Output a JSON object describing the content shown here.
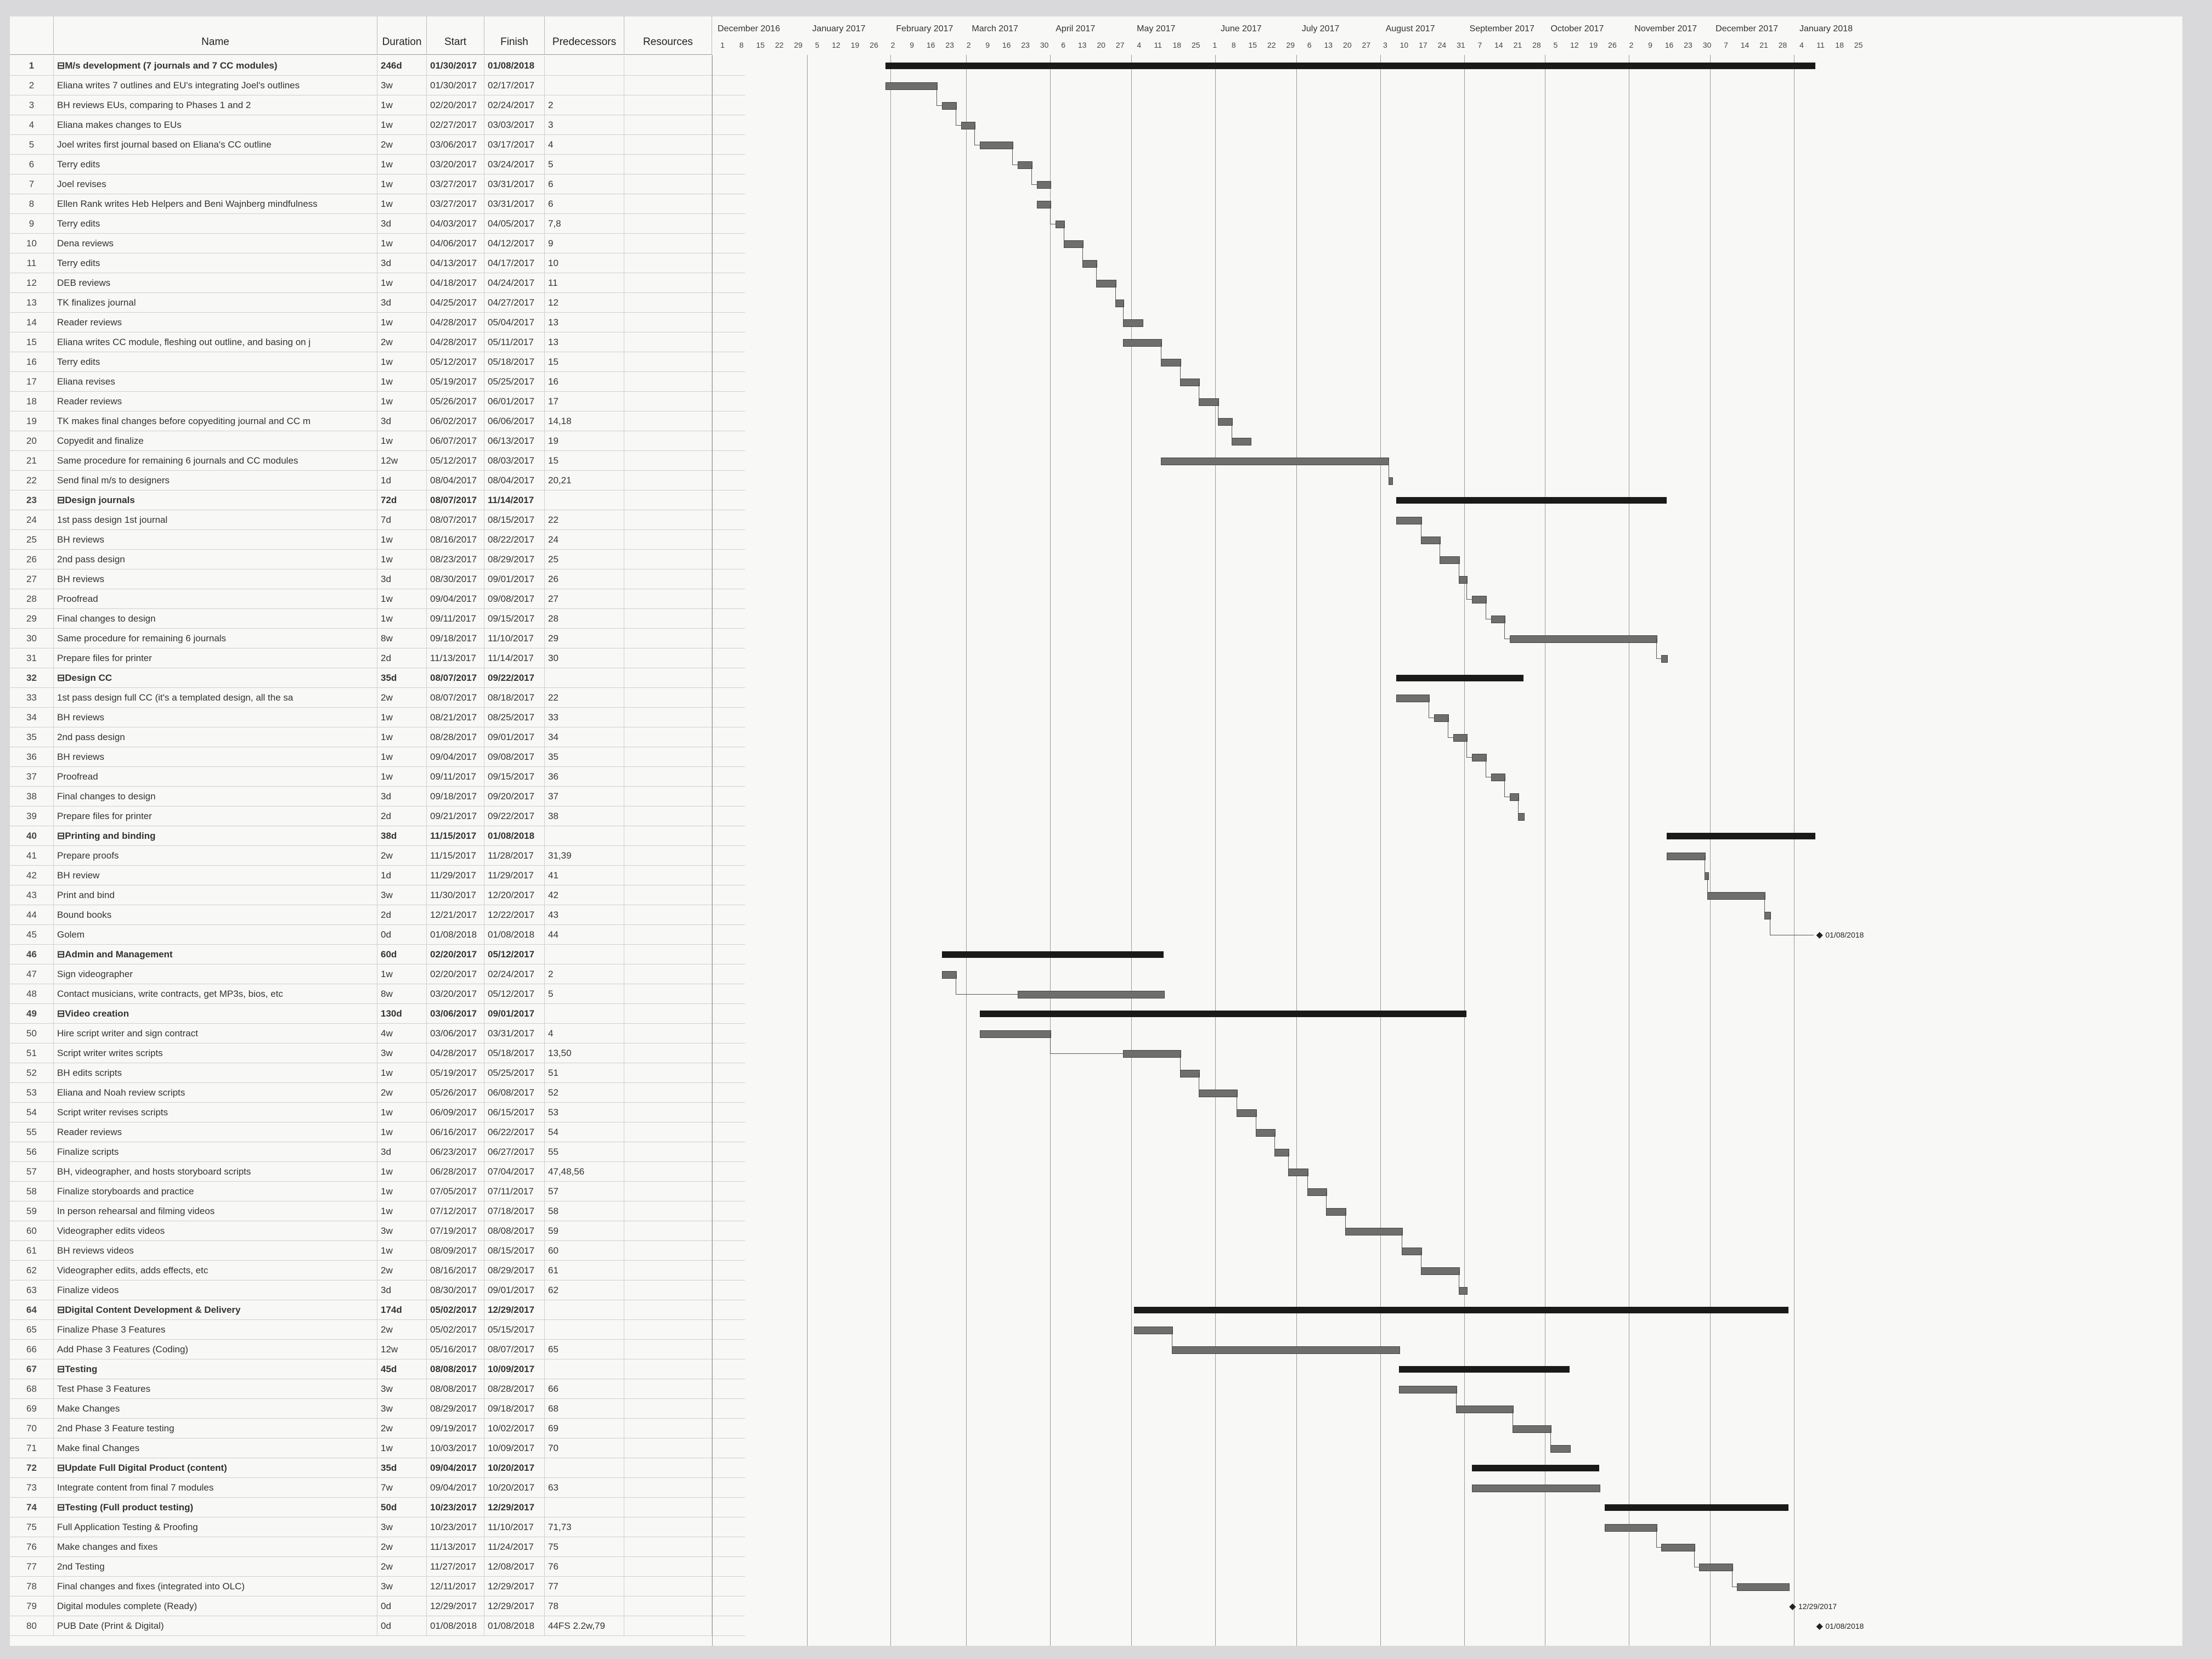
{
  "columns": {
    "id": "",
    "name": "Name",
    "duration": "Duration",
    "start": "Start",
    "finish": "Finish",
    "predecessors": "Predecessors",
    "resources": "Resources"
  },
  "timescale": {
    "months": [
      "December 2016",
      "January 2017",
      "February 2017",
      "March 2017",
      "April 2017",
      "May 2017",
      "June 2017",
      "July 2017",
      "August 2017",
      "September 2017",
      "October 2017",
      "November 2017",
      "December 2017",
      "January 2018"
    ],
    "days": [
      "1",
      "8",
      "15",
      "22",
      "29",
      "5",
      "12",
      "19",
      "26",
      "2",
      "9",
      "16",
      "23",
      "2",
      "9",
      "16",
      "23",
      "30",
      "6",
      "13",
      "20",
      "27",
      "4",
      "11",
      "18",
      "25",
      "1",
      "8",
      "15",
      "22",
      "29",
      "6",
      "13",
      "20",
      "27",
      "3",
      "10",
      "17",
      "24",
      "31",
      "7",
      "14",
      "21",
      "28",
      "5",
      "12",
      "19",
      "26",
      "2",
      "9",
      "16",
      "23",
      "30",
      "7",
      "14",
      "21",
      "28",
      "4",
      "11",
      "18",
      "25"
    ]
  },
  "tasks": [
    {
      "id": "1",
      "name": "⊟M/s development (7 journals and 7 CC modules)",
      "duration": "246d",
      "start": "01/30/2017",
      "finish": "01/08/2018",
      "pred": "",
      "summary": true
    },
    {
      "id": "2",
      "name": "Eliana writes 7 outlines and EU's integrating Joel's outlines",
      "duration": "3w",
      "start": "01/30/2017",
      "finish": "02/17/2017",
      "pred": ""
    },
    {
      "id": "3",
      "name": "BH reviews EUs, comparing to Phases 1 and 2",
      "duration": "1w",
      "start": "02/20/2017",
      "finish": "02/24/2017",
      "pred": "2"
    },
    {
      "id": "4",
      "name": "Eliana makes changes to EUs",
      "duration": "1w",
      "start": "02/27/2017",
      "finish": "03/03/2017",
      "pred": "3"
    },
    {
      "id": "5",
      "name": "Joel writes first journal based on Eliana's CC outline",
      "duration": "2w",
      "start": "03/06/2017",
      "finish": "03/17/2017",
      "pred": "4"
    },
    {
      "id": "6",
      "name": "Terry edits",
      "duration": "1w",
      "start": "03/20/2017",
      "finish": "03/24/2017",
      "pred": "5"
    },
    {
      "id": "7",
      "name": "Joel revises",
      "duration": "1w",
      "start": "03/27/2017",
      "finish": "03/31/2017",
      "pred": "6"
    },
    {
      "id": "8",
      "name": "Ellen Rank writes Heb Helpers and Beni Wajnberg mindfulness",
      "duration": "1w",
      "start": "03/27/2017",
      "finish": "03/31/2017",
      "pred": "6"
    },
    {
      "id": "9",
      "name": "Terry edits",
      "duration": "3d",
      "start": "04/03/2017",
      "finish": "04/05/2017",
      "pred": "7,8"
    },
    {
      "id": "10",
      "name": "Dena reviews",
      "duration": "1w",
      "start": "04/06/2017",
      "finish": "04/12/2017",
      "pred": "9"
    },
    {
      "id": "11",
      "name": "Terry edits",
      "duration": "3d",
      "start": "04/13/2017",
      "finish": "04/17/2017",
      "pred": "10"
    },
    {
      "id": "12",
      "name": "DEB reviews",
      "duration": "1w",
      "start": "04/18/2017",
      "finish": "04/24/2017",
      "pred": "11"
    },
    {
      "id": "13",
      "name": "TK finalizes journal",
      "duration": "3d",
      "start": "04/25/2017",
      "finish": "04/27/2017",
      "pred": "12"
    },
    {
      "id": "14",
      "name": "Reader reviews",
      "duration": "1w",
      "start": "04/28/2017",
      "finish": "05/04/2017",
      "pred": "13"
    },
    {
      "id": "15",
      "name": "Eliana writes CC module, fleshing out outline, and basing on j",
      "duration": "2w",
      "start": "04/28/2017",
      "finish": "05/11/2017",
      "pred": "13"
    },
    {
      "id": "16",
      "name": "Terry edits",
      "duration": "1w",
      "start": "05/12/2017",
      "finish": "05/18/2017",
      "pred": "15"
    },
    {
      "id": "17",
      "name": "Eliana revises",
      "duration": "1w",
      "start": "05/19/2017",
      "finish": "05/25/2017",
      "pred": "16"
    },
    {
      "id": "18",
      "name": "Reader reviews",
      "duration": "1w",
      "start": "05/26/2017",
      "finish": "06/01/2017",
      "pred": "17"
    },
    {
      "id": "19",
      "name": "TK makes final changes before copyediting journal and CC m",
      "duration": "3d",
      "start": "06/02/2017",
      "finish": "06/06/2017",
      "pred": "14,18"
    },
    {
      "id": "20",
      "name": "Copyedit and finalize",
      "duration": "1w",
      "start": "06/07/2017",
      "finish": "06/13/2017",
      "pred": "19"
    },
    {
      "id": "21",
      "name": "Same procedure for remaining 6 journals and CC modules",
      "duration": "12w",
      "start": "05/12/2017",
      "finish": "08/03/2017",
      "pred": "15"
    },
    {
      "id": "22",
      "name": "Send final m/s to designers",
      "duration": "1d",
      "start": "08/04/2017",
      "finish": "08/04/2017",
      "pred": "20,21"
    },
    {
      "id": "23",
      "name": "⊟Design journals",
      "duration": "72d",
      "start": "08/07/2017",
      "finish": "11/14/2017",
      "pred": "",
      "summary": true
    },
    {
      "id": "24",
      "name": "1st pass design 1st journal",
      "duration": "7d",
      "start": "08/07/2017",
      "finish": "08/15/2017",
      "pred": "22"
    },
    {
      "id": "25",
      "name": "BH reviews",
      "duration": "1w",
      "start": "08/16/2017",
      "finish": "08/22/2017",
      "pred": "24"
    },
    {
      "id": "26",
      "name": "2nd pass design",
      "duration": "1w",
      "start": "08/23/2017",
      "finish": "08/29/2017",
      "pred": "25"
    },
    {
      "id": "27",
      "name": "BH reviews",
      "duration": "3d",
      "start": "08/30/2017",
      "finish": "09/01/2017",
      "pred": "26"
    },
    {
      "id": "28",
      "name": "Proofread",
      "duration": "1w",
      "start": "09/04/2017",
      "finish": "09/08/2017",
      "pred": "27"
    },
    {
      "id": "29",
      "name": "Final changes to design",
      "duration": "1w",
      "start": "09/11/2017",
      "finish": "09/15/2017",
      "pred": "28"
    },
    {
      "id": "30",
      "name": "Same procedure for remaining 6 journals",
      "duration": "8w",
      "start": "09/18/2017",
      "finish": "11/10/2017",
      "pred": "29"
    },
    {
      "id": "31",
      "name": "Prepare files for printer",
      "duration": "2d",
      "start": "11/13/2017",
      "finish": "11/14/2017",
      "pred": "30"
    },
    {
      "id": "32",
      "name": "⊟Design CC",
      "duration": "35d",
      "start": "08/07/2017",
      "finish": "09/22/2017",
      "pred": "",
      "summary": true
    },
    {
      "id": "33",
      "name": "1st pass design full CC (it's a templated design, all the sa",
      "duration": "2w",
      "start": "08/07/2017",
      "finish": "08/18/2017",
      "pred": "22"
    },
    {
      "id": "34",
      "name": "BH reviews",
      "duration": "1w",
      "start": "08/21/2017",
      "finish": "08/25/2017",
      "pred": "33"
    },
    {
      "id": "35",
      "name": "2nd pass design",
      "duration": "1w",
      "start": "08/28/2017",
      "finish": "09/01/2017",
      "pred": "34"
    },
    {
      "id": "36",
      "name": "BH reviews",
      "duration": "1w",
      "start": "09/04/2017",
      "finish": "09/08/2017",
      "pred": "35"
    },
    {
      "id": "37",
      "name": "Proofread",
      "duration": "1w",
      "start": "09/11/2017",
      "finish": "09/15/2017",
      "pred": "36"
    },
    {
      "id": "38",
      "name": "Final changes to design",
      "duration": "3d",
      "start": "09/18/2017",
      "finish": "09/20/2017",
      "pred": "37"
    },
    {
      "id": "39",
      "name": "Prepare files for printer",
      "duration": "2d",
      "start": "09/21/2017",
      "finish": "09/22/2017",
      "pred": "38"
    },
    {
      "id": "40",
      "name": "⊟Printing and binding",
      "duration": "38d",
      "start": "11/15/2017",
      "finish": "01/08/2018",
      "pred": "",
      "summary": true
    },
    {
      "id": "41",
      "name": "Prepare proofs",
      "duration": "2w",
      "start": "11/15/2017",
      "finish": "11/28/2017",
      "pred": "31,39"
    },
    {
      "id": "42",
      "name": "BH review",
      "duration": "1d",
      "start": "11/29/2017",
      "finish": "11/29/2017",
      "pred": "41"
    },
    {
      "id": "43",
      "name": "Print and bind",
      "duration": "3w",
      "start": "11/30/2017",
      "finish": "12/20/2017",
      "pred": "42"
    },
    {
      "id": "44",
      "name": "Bound books",
      "duration": "2d",
      "start": "12/21/2017",
      "finish": "12/22/2017",
      "pred": "43"
    },
    {
      "id": "45",
      "name": "Golem",
      "duration": "0d",
      "start": "01/08/2018",
      "finish": "01/08/2018",
      "pred": "44"
    },
    {
      "id": "46",
      "name": "⊟Admin and Management",
      "duration": "60d",
      "start": "02/20/2017",
      "finish": "05/12/2017",
      "pred": "",
      "summary": true
    },
    {
      "id": "47",
      "name": "Sign videographer",
      "duration": "1w",
      "start": "02/20/2017",
      "finish": "02/24/2017",
      "pred": "2"
    },
    {
      "id": "48",
      "name": "Contact musicians, write contracts, get MP3s, bios, etc",
      "duration": "8w",
      "start": "03/20/2017",
      "finish": "05/12/2017",
      "pred": "5"
    },
    {
      "id": "49",
      "name": "⊟Video creation",
      "duration": "130d",
      "start": "03/06/2017",
      "finish": "09/01/2017",
      "pred": "",
      "summary": true
    },
    {
      "id": "50",
      "name": "Hire script writer and sign contract",
      "duration": "4w",
      "start": "03/06/2017",
      "finish": "03/31/2017",
      "pred": "4"
    },
    {
      "id": "51",
      "name": "Script writer writes scripts",
      "duration": "3w",
      "start": "04/28/2017",
      "finish": "05/18/2017",
      "pred": "13,50"
    },
    {
      "id": "52",
      "name": "BH edits scripts",
      "duration": "1w",
      "start": "05/19/2017",
      "finish": "05/25/2017",
      "pred": "51"
    },
    {
      "id": "53",
      "name": "Eliana and Noah review scripts",
      "duration": "2w",
      "start": "05/26/2017",
      "finish": "06/08/2017",
      "pred": "52"
    },
    {
      "id": "54",
      "name": "Script writer revises scripts",
      "duration": "1w",
      "start": "06/09/2017",
      "finish": "06/15/2017",
      "pred": "53"
    },
    {
      "id": "55",
      "name": "Reader reviews",
      "duration": "1w",
      "start": "06/16/2017",
      "finish": "06/22/2017",
      "pred": "54"
    },
    {
      "id": "56",
      "name": "Finalize scripts",
      "duration": "3d",
      "start": "06/23/2017",
      "finish": "06/27/2017",
      "pred": "55"
    },
    {
      "id": "57",
      "name": "BH, videographer, and hosts storyboard scripts",
      "duration": "1w",
      "start": "06/28/2017",
      "finish": "07/04/2017",
      "pred": "47,48,56"
    },
    {
      "id": "58",
      "name": "Finalize storyboards and practice",
      "duration": "1w",
      "start": "07/05/2017",
      "finish": "07/11/2017",
      "pred": "57"
    },
    {
      "id": "59",
      "name": "In person rehearsal and filming videos",
      "duration": "1w",
      "start": "07/12/2017",
      "finish": "07/18/2017",
      "pred": "58"
    },
    {
      "id": "60",
      "name": "Videographer edits videos",
      "duration": "3w",
      "start": "07/19/2017",
      "finish": "08/08/2017",
      "pred": "59"
    },
    {
      "id": "61",
      "name": "BH reviews videos",
      "duration": "1w",
      "start": "08/09/2017",
      "finish": "08/15/2017",
      "pred": "60"
    },
    {
      "id": "62",
      "name": "Videographer edits, adds effects, etc",
      "duration": "2w",
      "start": "08/16/2017",
      "finish": "08/29/2017",
      "pred": "61"
    },
    {
      "id": "63",
      "name": "Finalize videos",
      "duration": "3d",
      "start": "08/30/2017",
      "finish": "09/01/2017",
      "pred": "62"
    },
    {
      "id": "64",
      "name": "⊟Digital Content Development & Delivery",
      "duration": "174d",
      "start": "05/02/2017",
      "finish": "12/29/2017",
      "pred": "",
      "summary": true
    },
    {
      "id": "65",
      "name": "Finalize Phase 3 Features",
      "duration": "2w",
      "start": "05/02/2017",
      "finish": "05/15/2017",
      "pred": ""
    },
    {
      "id": "66",
      "name": "Add Phase 3 Features (Coding)",
      "duration": "12w",
      "start": "05/16/2017",
      "finish": "08/07/2017",
      "pred": "65"
    },
    {
      "id": "67",
      "name": "⊟Testing",
      "duration": "45d",
      "start": "08/08/2017",
      "finish": "10/09/2017",
      "pred": "",
      "summary": true
    },
    {
      "id": "68",
      "name": "Test Phase 3 Features",
      "duration": "3w",
      "start": "08/08/2017",
      "finish": "08/28/2017",
      "pred": "66"
    },
    {
      "id": "69",
      "name": "Make Changes",
      "duration": "3w",
      "start": "08/29/2017",
      "finish": "09/18/2017",
      "pred": "68"
    },
    {
      "id": "70",
      "name": "2nd Phase 3 Feature testing",
      "duration": "2w",
      "start": "09/19/2017",
      "finish": "10/02/2017",
      "pred": "69"
    },
    {
      "id": "71",
      "name": "Make final Changes",
      "duration": "1w",
      "start": "10/03/2017",
      "finish": "10/09/2017",
      "pred": "70"
    },
    {
      "id": "72",
      "name": "⊟Update Full Digital Product (content)",
      "duration": "35d",
      "start": "09/04/2017",
      "finish": "10/20/2017",
      "pred": "",
      "summary": true
    },
    {
      "id": "73",
      "name": "Integrate content from final 7 modules",
      "duration": "7w",
      "start": "09/04/2017",
      "finish": "10/20/2017",
      "pred": "63"
    },
    {
      "id": "74",
      "name": "⊟Testing (Full product testing)",
      "duration": "50d",
      "start": "10/23/2017",
      "finish": "12/29/2017",
      "pred": "",
      "summary": true
    },
    {
      "id": "75",
      "name": "Full Application Testing & Proofing",
      "duration": "3w",
      "start": "10/23/2017",
      "finish": "11/10/2017",
      "pred": "71,73"
    },
    {
      "id": "76",
      "name": "Make changes and fixes",
      "duration": "2w",
      "start": "11/13/2017",
      "finish": "11/24/2017",
      "pred": "75"
    },
    {
      "id": "77",
      "name": "2nd Testing",
      "duration": "2w",
      "start": "11/27/2017",
      "finish": "12/08/2017",
      "pred": "76"
    },
    {
      "id": "78",
      "name": "Final changes and fixes (integrated into OLC)",
      "duration": "3w",
      "start": "12/11/2017",
      "finish": "12/29/2017",
      "pred": "77"
    },
    {
      "id": "79",
      "name": "Digital modules complete (Ready)",
      "duration": "0d",
      "start": "12/29/2017",
      "finish": "12/29/2017",
      "pred": "78"
    },
    {
      "id": "80",
      "name": "PUB Date (Print & Digital)",
      "duration": "0d",
      "start": "01/08/2018",
      "finish": "01/08/2018",
      "pred": "44FS 2.2w,79"
    }
  ],
  "milestones": {
    "golem": "01/08/2018",
    "digital_ready": "12/29/2017",
    "pub_date": "01/08/2018"
  },
  "timeline_origin": "2016-11-27",
  "colors": {
    "sheet": "#f8f8f6",
    "bar": "#6e6e6e",
    "summary_bar": "#1a1a1a",
    "grid": "#9a9a9a"
  }
}
